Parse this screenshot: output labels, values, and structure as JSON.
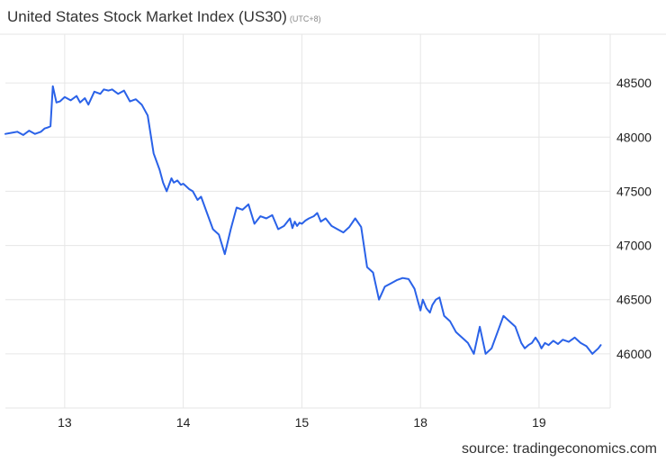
{
  "header": {
    "title": "United States Stock Market Index (US30)",
    "timezone": "(UTC+8)"
  },
  "footer": {
    "source": "source: tradingeconomics.com"
  },
  "colors": {
    "line": "#2a62e8",
    "grid": "#e6e6e6"
  },
  "chart_data": {
    "type": "line",
    "title": "United States Stock Market Index (US30)",
    "xlabel": "",
    "ylabel": "",
    "x_ticks": [
      {
        "label": "13",
        "x": 0.5
      },
      {
        "label": "14",
        "x": 1.5
      },
      {
        "label": "15",
        "x": 2.5
      },
      {
        "label": "18",
        "x": 3.5
      },
      {
        "label": "19",
        "x": 4.5
      }
    ],
    "y_ticks": [
      46000,
      46500,
      47000,
      47500,
      48000,
      48500
    ],
    "xlim": [
      0,
      5.1
    ],
    "ylim": [
      45500,
      48950
    ],
    "grid": true,
    "y_axis_side": "right",
    "series": [
      {
        "x": [
          0.0,
          0.05,
          0.1,
          0.15,
          0.2,
          0.25,
          0.3,
          0.33,
          0.36,
          0.38,
          0.4,
          0.43,
          0.46,
          0.5,
          0.55,
          0.6,
          0.63,
          0.67,
          0.7,
          0.75,
          0.8,
          0.83,
          0.87,
          0.9,
          0.95,
          1.0,
          1.05,
          1.1,
          1.15,
          1.2,
          1.25,
          1.3,
          1.33,
          1.36,
          1.4,
          1.42,
          1.45,
          1.48,
          1.5,
          1.52,
          1.55,
          1.58,
          1.62,
          1.65,
          1.7,
          1.75,
          1.8,
          1.85,
          1.9,
          1.95,
          2.0,
          2.05,
          2.1,
          2.15,
          2.2,
          2.25,
          2.3,
          2.35,
          2.4,
          2.42,
          2.44,
          2.46,
          2.48,
          2.5,
          2.53,
          2.56,
          2.6,
          2.63,
          2.66,
          2.7,
          2.75,
          2.8,
          2.85,
          2.9,
          2.95,
          3.0,
          3.05,
          3.1,
          3.15,
          3.2,
          3.25,
          3.3,
          3.35,
          3.4,
          3.45,
          3.48,
          3.5,
          3.52,
          3.55,
          3.58,
          3.6,
          3.63,
          3.66,
          3.7,
          3.75,
          3.8,
          3.85,
          3.9,
          3.95,
          4.0,
          4.05,
          4.1,
          4.15,
          4.2,
          4.25,
          4.3,
          4.35,
          4.38,
          4.41,
          4.44,
          4.47,
          4.5,
          4.52,
          4.55,
          4.58,
          4.62,
          4.66,
          4.7,
          4.75,
          4.8,
          4.85,
          4.9,
          4.95,
          5.0,
          5.02
        ],
        "y": [
          48030,
          48040,
          48050,
          48020,
          48060,
          48030,
          48050,
          48080,
          48090,
          48100,
          48470,
          48320,
          48330,
          48370,
          48340,
          48380,
          48320,
          48360,
          48300,
          48420,
          48400,
          48440,
          48430,
          48440,
          48400,
          48430,
          48330,
          48350,
          48300,
          48200,
          47850,
          47700,
          47580,
          47500,
          47620,
          47580,
          47600,
          47560,
          47570,
          47550,
          47520,
          47500,
          47420,
          47450,
          47300,
          47150,
          47100,
          46920,
          47150,
          47350,
          47330,
          47380,
          47200,
          47270,
          47250,
          47280,
          47150,
          47180,
          47250,
          47160,
          47220,
          47180,
          47210,
          47200,
          47230,
          47250,
          47270,
          47300,
          47220,
          47250,
          47180,
          47150,
          47120,
          47170,
          47250,
          47170,
          46800,
          46750,
          46500,
          46620,
          46650,
          46680,
          46700,
          46690,
          46600,
          46480,
          46400,
          46500,
          46420,
          46380,
          46450,
          46500,
          46520,
          46350,
          46300,
          46200,
          46150,
          46100,
          46000,
          46250,
          46000,
          46050,
          46200,
          46350,
          46300,
          46250,
          46100,
          46050,
          46080,
          46100,
          46150,
          46100,
          46050,
          46100,
          46080,
          46120,
          46090,
          46130,
          46110,
          46150,
          46100,
          46070,
          46000,
          46050,
          46080
        ]
      }
    ]
  }
}
